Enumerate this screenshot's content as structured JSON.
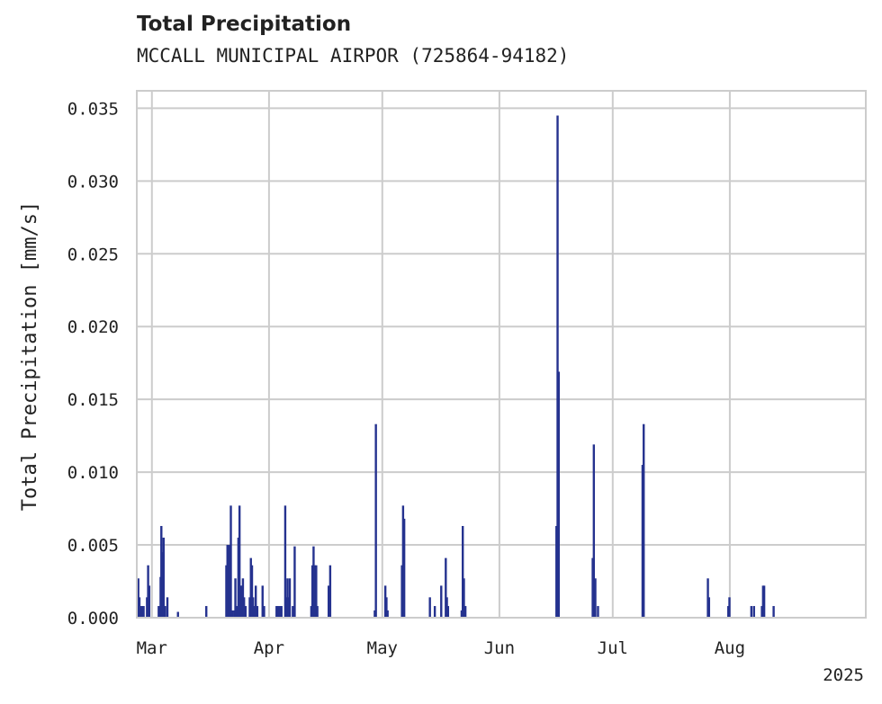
{
  "header": {
    "title": "Total Precipitation",
    "subtitle": "MCCALL MUNICIPAL AIRPOR (725864-94182)"
  },
  "colors": {
    "bar": "#25328f",
    "grid": "#cccccc",
    "frame": "#cccccc"
  },
  "chart_data": {
    "type": "bar",
    "title": "Total Precipitation",
    "subtitle": "MCCALL MUNICIPAL AIRPOR (725864-94182)",
    "xlabel": "",
    "ylabel": "Total Precipitation [mm/s]",
    "year_label": "2025",
    "ylim": [
      0,
      0.0362
    ],
    "xlim_day": [
      -4.0,
      189.0
    ],
    "y_ticks": [
      0.0,
      0.005,
      0.01,
      0.015,
      0.02,
      0.025,
      0.03,
      0.035
    ],
    "y_tick_labels": [
      "0.000",
      "0.005",
      "0.010",
      "0.015",
      "0.020",
      "0.025",
      "0.030",
      "0.035"
    ],
    "x_ticks": [
      {
        "label": "Mar",
        "day": 0
      },
      {
        "label": "Apr",
        "day": 31
      },
      {
        "label": "May",
        "day": 61
      },
      {
        "label": "Jun",
        "day": 92
      },
      {
        "label": "Jul",
        "day": 122
      },
      {
        "label": "Aug",
        "day": 153
      }
    ],
    "x_unit": "days since 2025-03-01",
    "grid": true,
    "series": [
      {
        "name": "Total Precipitation",
        "points": [
          {
            "day": -3.6,
            "value": 0.0027
          },
          {
            "day": -3.3,
            "value": 0.0014
          },
          {
            "day": -3.0,
            "value": 0.0008
          },
          {
            "day": -2.6,
            "value": 0.0008
          },
          {
            "day": -2.2,
            "value": 0.0008
          },
          {
            "day": -1.3,
            "value": 0.0014
          },
          {
            "day": -1.0,
            "value": 0.0036
          },
          {
            "day": -0.7,
            "value": 0.0022
          },
          {
            "day": 1.8,
            "value": 0.0008
          },
          {
            "day": 2.3,
            "value": 0.0028
          },
          {
            "day": 2.5,
            "value": 0.0063
          },
          {
            "day": 2.8,
            "value": 0.0045
          },
          {
            "day": 3.1,
            "value": 0.0055
          },
          {
            "day": 3.5,
            "value": 0.0008
          },
          {
            "day": 4.1,
            "value": 0.0014
          },
          {
            "day": 6.9,
            "value": 0.0004
          },
          {
            "day": 14.4,
            "value": 0.0008
          },
          {
            "day": 19.7,
            "value": 0.0036
          },
          {
            "day": 20.0,
            "value": 0.005
          },
          {
            "day": 20.4,
            "value": 0.005
          },
          {
            "day": 20.6,
            "value": 0.0028
          },
          {
            "day": 20.9,
            "value": 0.0077
          },
          {
            "day": 21.3,
            "value": 0.0005
          },
          {
            "day": 21.8,
            "value": 0.0005
          },
          {
            "day": 22.1,
            "value": 0.0027
          },
          {
            "day": 22.5,
            "value": 0.0008
          },
          {
            "day": 22.9,
            "value": 0.0055
          },
          {
            "day": 23.2,
            "value": 0.0077
          },
          {
            "day": 23.5,
            "value": 0.0022
          },
          {
            "day": 23.8,
            "value": 0.0022
          },
          {
            "day": 24.1,
            "value": 0.0027
          },
          {
            "day": 24.4,
            "value": 0.0014
          },
          {
            "day": 24.8,
            "value": 0.0008
          },
          {
            "day": 25.9,
            "value": 0.0014
          },
          {
            "day": 26.2,
            "value": 0.0041
          },
          {
            "day": 26.5,
            "value": 0.0036
          },
          {
            "day": 26.8,
            "value": 0.0014
          },
          {
            "day": 27.2,
            "value": 0.0008
          },
          {
            "day": 27.5,
            "value": 0.0022
          },
          {
            "day": 27.9,
            "value": 0.0008
          },
          {
            "day": 29.3,
            "value": 0.0022
          },
          {
            "day": 29.7,
            "value": 0.0008
          },
          {
            "day": 33.0,
            "value": 0.0008
          },
          {
            "day": 33.4,
            "value": 0.0008
          },
          {
            "day": 33.9,
            "value": 0.0008
          },
          {
            "day": 34.3,
            "value": 0.0008
          },
          {
            "day": 35.3,
            "value": 0.0077
          },
          {
            "day": 35.6,
            "value": 0.0014
          },
          {
            "day": 35.9,
            "value": 0.0027
          },
          {
            "day": 36.2,
            "value": 0.0014
          },
          {
            "day": 36.5,
            "value": 0.0027
          },
          {
            "day": 37.3,
            "value": 0.0008
          },
          {
            "day": 37.8,
            "value": 0.0049
          },
          {
            "day": 42.2,
            "value": 0.0008
          },
          {
            "day": 42.5,
            "value": 0.0036
          },
          {
            "day": 42.8,
            "value": 0.0049
          },
          {
            "day": 43.1,
            "value": 0.0036
          },
          {
            "day": 43.5,
            "value": 0.0036
          },
          {
            "day": 43.8,
            "value": 0.0008
          },
          {
            "day": 46.8,
            "value": 0.0022
          },
          {
            "day": 47.2,
            "value": 0.0036
          },
          {
            "day": 59.0,
            "value": 0.0005
          },
          {
            "day": 59.3,
            "value": 0.0133
          },
          {
            "day": 61.8,
            "value": 0.0022
          },
          {
            "day": 62.1,
            "value": 0.0014
          },
          {
            "day": 62.4,
            "value": 0.0005
          },
          {
            "day": 66.2,
            "value": 0.0036
          },
          {
            "day": 66.5,
            "value": 0.0077
          },
          {
            "day": 66.8,
            "value": 0.0068
          },
          {
            "day": 73.6,
            "value": 0.0014
          },
          {
            "day": 74.9,
            "value": 0.0008
          },
          {
            "day": 76.6,
            "value": 0.0022
          },
          {
            "day": 77.8,
            "value": 0.0041
          },
          {
            "day": 78.1,
            "value": 0.0014
          },
          {
            "day": 78.4,
            "value": 0.0008
          },
          {
            "day": 82.0,
            "value": 0.0005
          },
          {
            "day": 82.3,
            "value": 0.0063
          },
          {
            "day": 82.6,
            "value": 0.0027
          },
          {
            "day": 83.0,
            "value": 0.0008
          },
          {
            "day": 107.1,
            "value": 0.0063
          },
          {
            "day": 107.4,
            "value": 0.0345
          },
          {
            "day": 107.7,
            "value": 0.0169
          },
          {
            "day": 116.7,
            "value": 0.0041
          },
          {
            "day": 117.0,
            "value": 0.0119
          },
          {
            "day": 117.4,
            "value": 0.0027
          },
          {
            "day": 118.1,
            "value": 0.0008
          },
          {
            "day": 129.9,
            "value": 0.0105
          },
          {
            "day": 130.2,
            "value": 0.0133
          },
          {
            "day": 147.2,
            "value": 0.0027
          },
          {
            "day": 147.5,
            "value": 0.0014
          },
          {
            "day": 152.6,
            "value": 0.0008
          },
          {
            "day": 152.9,
            "value": 0.0014
          },
          {
            "day": 158.7,
            "value": 0.0008
          },
          {
            "day": 159.4,
            "value": 0.0008
          },
          {
            "day": 161.5,
            "value": 0.0008
          },
          {
            "day": 161.8,
            "value": 0.0022
          },
          {
            "day": 162.1,
            "value": 0.0022
          },
          {
            "day": 164.6,
            "value": 0.0008
          }
        ]
      }
    ]
  }
}
